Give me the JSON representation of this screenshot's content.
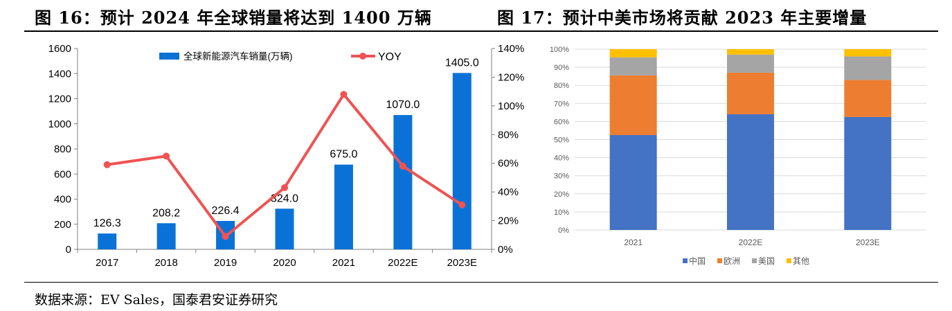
{
  "header": {
    "left_title": "图 16：预计 2024 年全球销量将达到 1400 万辆",
    "right_title": "图 17：预计中美市场将贡献 2023 年主要增量"
  },
  "source": "数据来源：EV Sales，国泰君安证券研究",
  "chart_data": [
    {
      "type": "bar",
      "categories": [
        "2017",
        "2018",
        "2019",
        "2020",
        "2021",
        "2022E",
        "2023E"
      ],
      "series": [
        {
          "name": "全球新能源汽车销量(万辆)",
          "type": "bar",
          "axis": "left",
          "values": [
            126.3,
            208.2,
            226.4,
            324.0,
            675.0,
            1070.0,
            1405.0
          ],
          "value_labels": [
            "126.3",
            "208.2",
            "226.4",
            "324.0",
            "675.0",
            "1070.0",
            "1405.0"
          ],
          "color": "#0a72d6"
        },
        {
          "name": "YOY",
          "type": "line",
          "axis": "right",
          "values": [
            0.59,
            0.65,
            0.09,
            0.43,
            1.08,
            0.58,
            0.31
          ],
          "color": "#ef5353"
        }
      ],
      "y_left": {
        "min": 0,
        "max": 1600,
        "ticks": [
          "0",
          "200",
          "400",
          "600",
          "800",
          "1000",
          "1200",
          "1400",
          "1600"
        ]
      },
      "y_right": {
        "min": 0,
        "max": 1.4,
        "ticks": [
          "0%",
          "20%",
          "40%",
          "60%",
          "80%",
          "100%",
          "120%",
          "140%"
        ]
      },
      "legend": "top",
      "grid": false
    },
    {
      "type": "bar",
      "stacked": true,
      "percent": true,
      "categories": [
        "2021",
        "2022E",
        "2023E"
      ],
      "series": [
        {
          "name": "中国",
          "values": [
            52.5,
            64,
            62.5
          ],
          "color": "#4472c4"
        },
        {
          "name": "欧洲",
          "values": [
            33,
            23,
            20.5
          ],
          "color": "#ed7d31"
        },
        {
          "name": "美国",
          "values": [
            10,
            10,
            13
          ],
          "color": "#a5a5a5"
        },
        {
          "name": "其他",
          "values": [
            4.5,
            3,
            4
          ],
          "color": "#ffc000"
        }
      ],
      "y": {
        "min": 0,
        "max": 100,
        "ticks": [
          "0%",
          "10%",
          "20%",
          "30%",
          "40%",
          "50%",
          "60%",
          "70%",
          "80%",
          "90%",
          "100%"
        ]
      },
      "legend": "bottom",
      "grid": true
    }
  ]
}
